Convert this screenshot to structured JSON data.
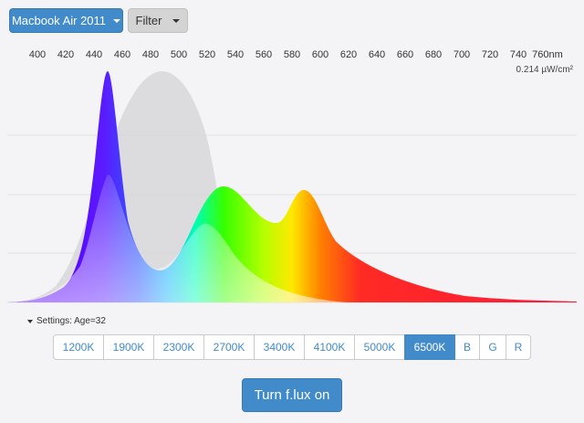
{
  "toolbar": {
    "device_label": "Macbook Air 2011",
    "filter_label": "Filter"
  },
  "spectrum": {
    "axis_ticks": [
      "400",
      "420",
      "440",
      "460",
      "480",
      "500",
      "520",
      "540",
      "560",
      "580",
      "600",
      "620",
      "640",
      "660",
      "680",
      "700",
      "720",
      "740",
      "760nm"
    ],
    "readout": "0.214 µW/cm²"
  },
  "settings": {
    "label": "Settings: Age=32"
  },
  "temperature": {
    "options": [
      "1200K",
      "1900K",
      "2300K",
      "2700K",
      "3400K",
      "4100K",
      "5000K",
      "6500K",
      "B",
      "G",
      "R"
    ],
    "selected": "6500K"
  },
  "actions": {
    "flux_label": "Turn f.lux on"
  },
  "colors": {
    "accent": "#428bca"
  }
}
